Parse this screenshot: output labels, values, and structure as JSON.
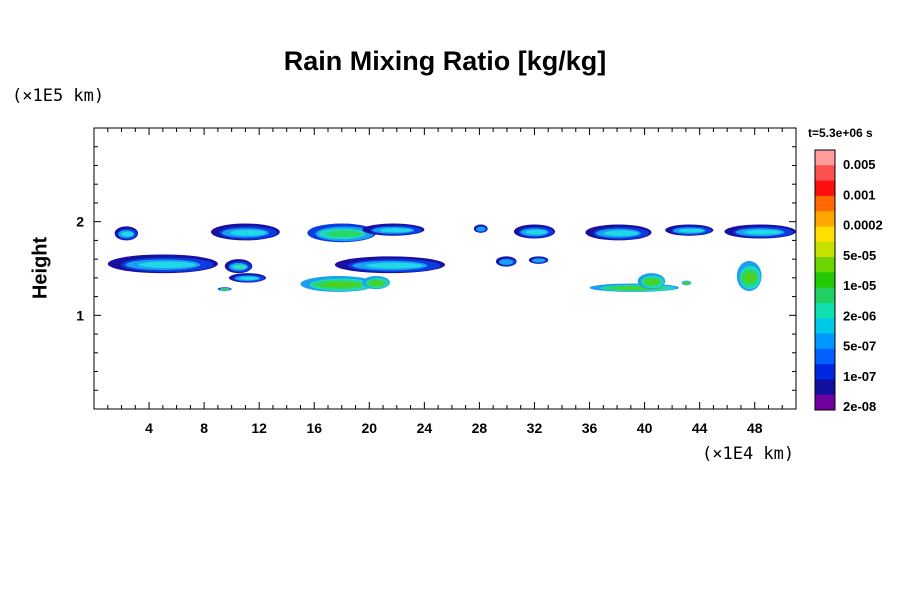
{
  "chart_data": {
    "type": "heatmap",
    "title": "Rain Mixing Ratio [kg/kg]",
    "ylabel": "Height",
    "y_unit": "(×1E5 km)",
    "x_unit": "(×1E4 km)",
    "time_label": "t=5.3e+06 s",
    "xlim": [
      0,
      51
    ],
    "ylim": [
      0,
      3
    ],
    "x_ticks": [
      4,
      8,
      12,
      16,
      20,
      24,
      28,
      32,
      36,
      40,
      44,
      48
    ],
    "y_ticks": [
      1,
      2
    ],
    "colorbar": {
      "labels": [
        "0.005",
        "0.001",
        "0.0002",
        "5e-05",
        "1e-05",
        "2e-06",
        "5e-07",
        "1e-07",
        "2e-08"
      ],
      "colors": [
        "#ff9c9c",
        "#ff5050",
        "#ff1010",
        "#ff6a00",
        "#ffa500",
        "#ffe000",
        "#c8e000",
        "#6cd400",
        "#22c800",
        "#20d060",
        "#10e0b0",
        "#00c8e8",
        "#0098ff",
        "#0060ff",
        "#0028e0",
        "#1010a0",
        "#7000a0"
      ]
    },
    "regions": [
      {
        "x": [
          1.5,
          3.2
        ],
        "y": [
          1.8,
          1.95
        ],
        "level": 3
      },
      {
        "x": [
          8.5,
          13.5
        ],
        "y": [
          1.8,
          1.98
        ],
        "level": 3
      },
      {
        "x": [
          15.5,
          20.5
        ],
        "y": [
          1.78,
          1.98
        ],
        "level": 4
      },
      {
        "x": [
          19.5,
          24.0
        ],
        "y": [
          1.85,
          1.98
        ],
        "level": 3
      },
      {
        "x": [
          27.6,
          28.6
        ],
        "y": [
          1.88,
          1.97
        ],
        "level": 1
      },
      {
        "x": [
          30.5,
          33.5
        ],
        "y": [
          1.82,
          1.97
        ],
        "level": 3
      },
      {
        "x": [
          35.7,
          40.5
        ],
        "y": [
          1.8,
          1.97
        ],
        "level": 3
      },
      {
        "x": [
          41.5,
          45.0
        ],
        "y": [
          1.85,
          1.97
        ],
        "level": 3
      },
      {
        "x": [
          45.8,
          51.0
        ],
        "y": [
          1.82,
          1.97
        ],
        "level": 3
      },
      {
        "x": [
          1.0,
          9.0
        ],
        "y": [
          1.45,
          1.65
        ],
        "level": 3
      },
      {
        "x": [
          9.5,
          11.5
        ],
        "y": [
          1.45,
          1.6
        ],
        "level": 0
      },
      {
        "x": [
          9.8,
          12.5
        ],
        "y": [
          1.35,
          1.45
        ],
        "level": 3
      },
      {
        "x": [
          15.0,
          20.5
        ],
        "y": [
          1.25,
          1.42
        ],
        "level": 5
      },
      {
        "x": [
          17.5,
          25.5
        ],
        "y": [
          1.45,
          1.63
        ],
        "level": 3
      },
      {
        "x": [
          19.5,
          21.5
        ],
        "y": [
          1.28,
          1.42
        ],
        "level": 5
      },
      {
        "x": [
          29.2,
          30.7
        ],
        "y": [
          1.52,
          1.63
        ],
        "level": 1
      },
      {
        "x": [
          31.6,
          33.0
        ],
        "y": [
          1.55,
          1.63
        ],
        "level": 1
      },
      {
        "x": [
          36.0,
          42.5
        ],
        "y": [
          1.25,
          1.34
        ],
        "level": 5
      },
      {
        "x": [
          39.5,
          41.5
        ],
        "y": [
          1.28,
          1.45
        ],
        "level": 5
      },
      {
        "x": [
          42.7,
          43.4
        ],
        "y": [
          1.32,
          1.37
        ],
        "level": 5
      },
      {
        "x": [
          46.7,
          48.5
        ],
        "y": [
          1.26,
          1.58
        ],
        "level": 5
      },
      {
        "x": [
          9.0,
          10.0
        ],
        "y": [
          1.26,
          1.3
        ],
        "level": 4
      }
    ]
  }
}
